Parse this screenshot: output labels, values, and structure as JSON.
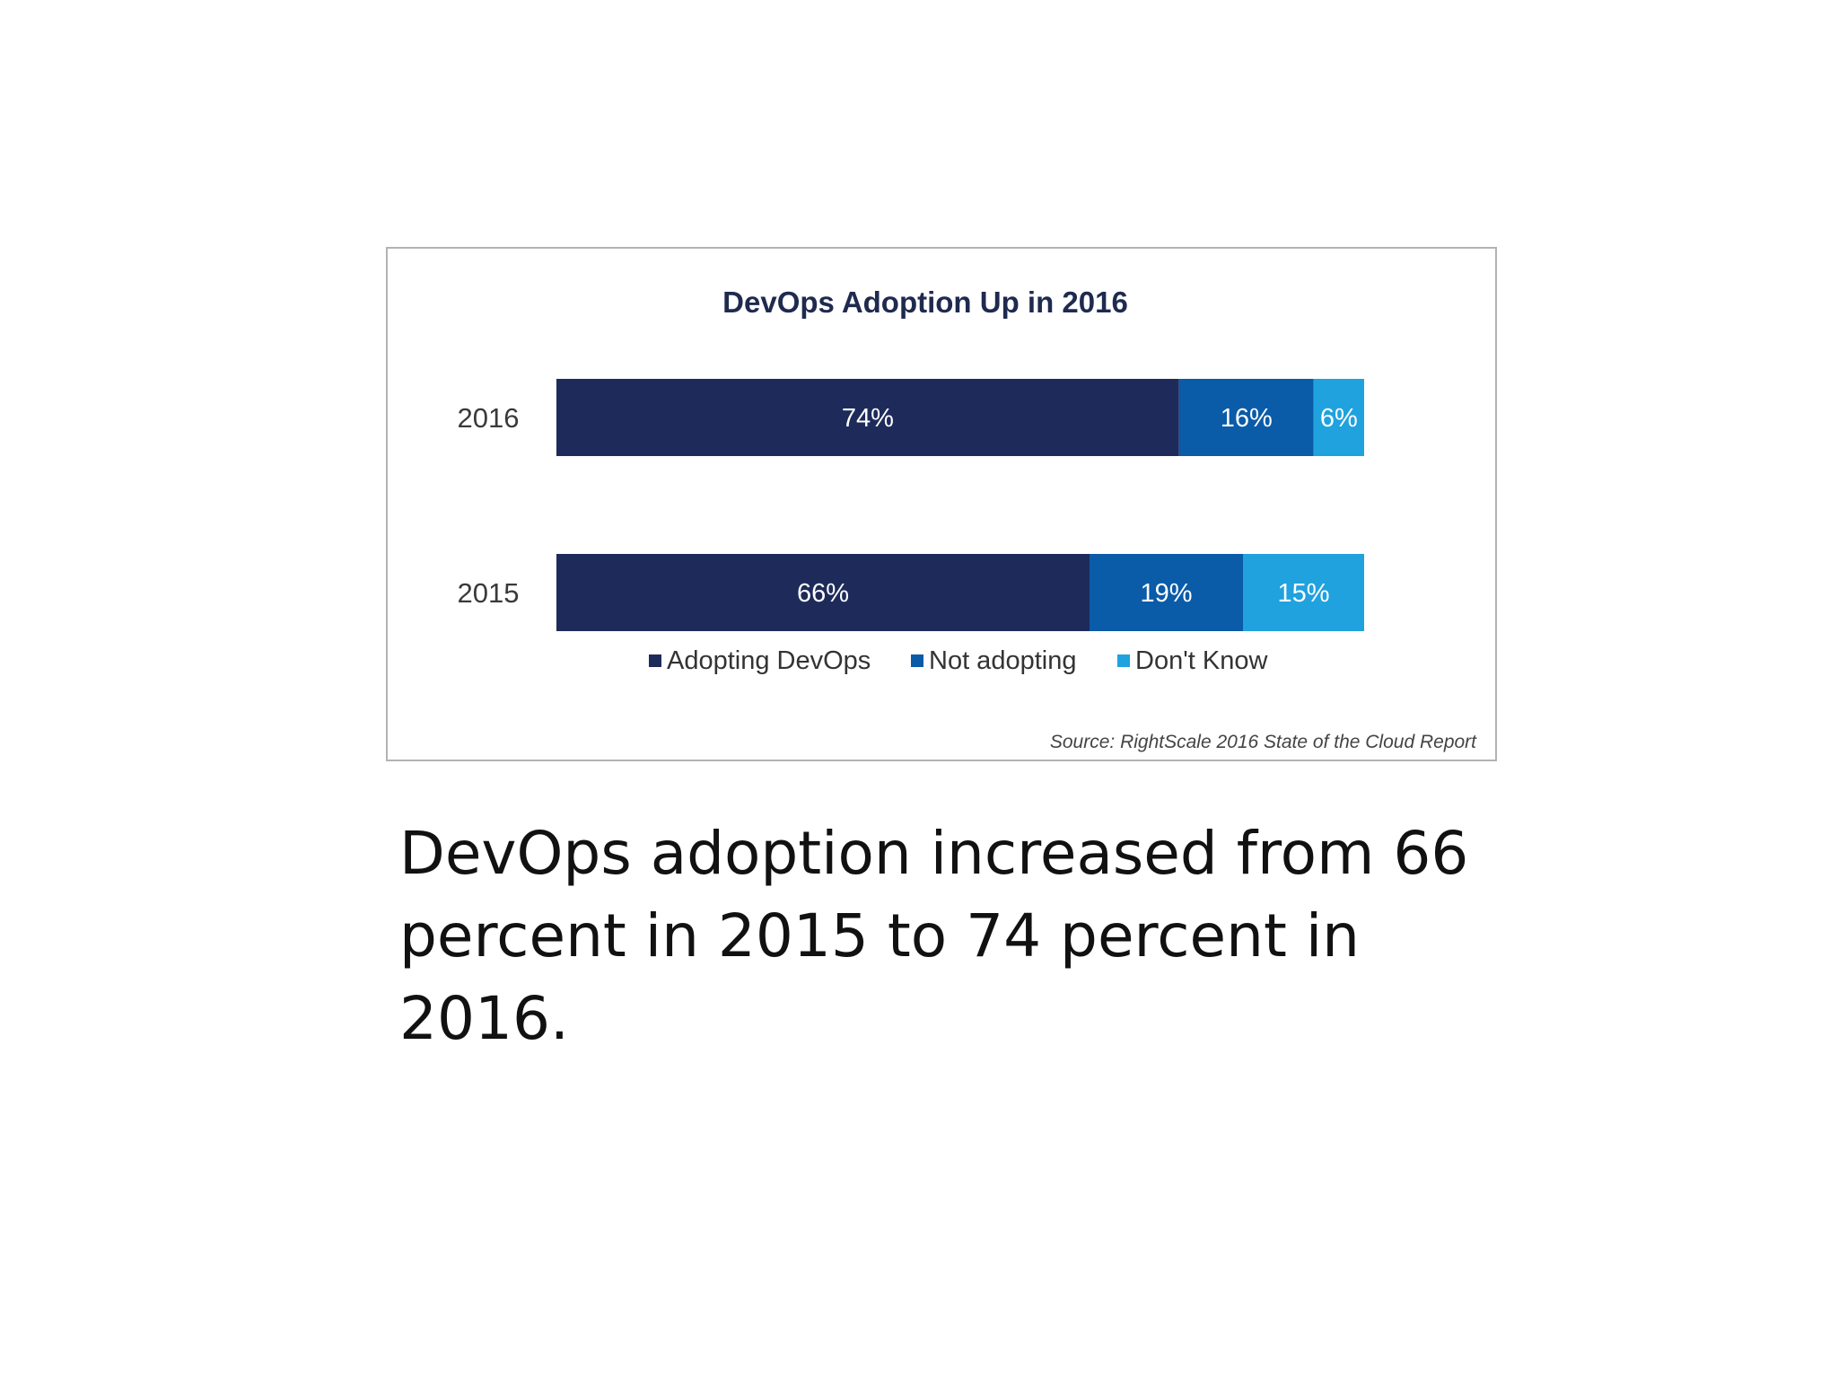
{
  "chart_data": {
    "type": "bar",
    "orientation": "horizontal",
    "stacked": true,
    "title": "DevOps Adoption Up in 2016",
    "categories": [
      "2016",
      "2015"
    ],
    "series": [
      {
        "name": "Adopting DevOps",
        "values": [
          74,
          66
        ],
        "labels": [
          "74%",
          "66%"
        ],
        "color": "#1e2b5a"
      },
      {
        "name": "Not adopting",
        "values": [
          16,
          19
        ],
        "labels": [
          "16%",
          "19%"
        ],
        "color": "#0a5ba8"
      },
      {
        "name": "Don't Know",
        "values": [
          6,
          15
        ],
        "labels": [
          "6%",
          "15%"
        ],
        "color": "#1fa2de"
      }
    ],
    "legend_position": "bottom",
    "grid": false,
    "source": "Source: RightScale 2016 State of the Cloud Report"
  },
  "caption": "DevOps adoption increased from 66 percent in 2015 to 74 percent in 2016."
}
